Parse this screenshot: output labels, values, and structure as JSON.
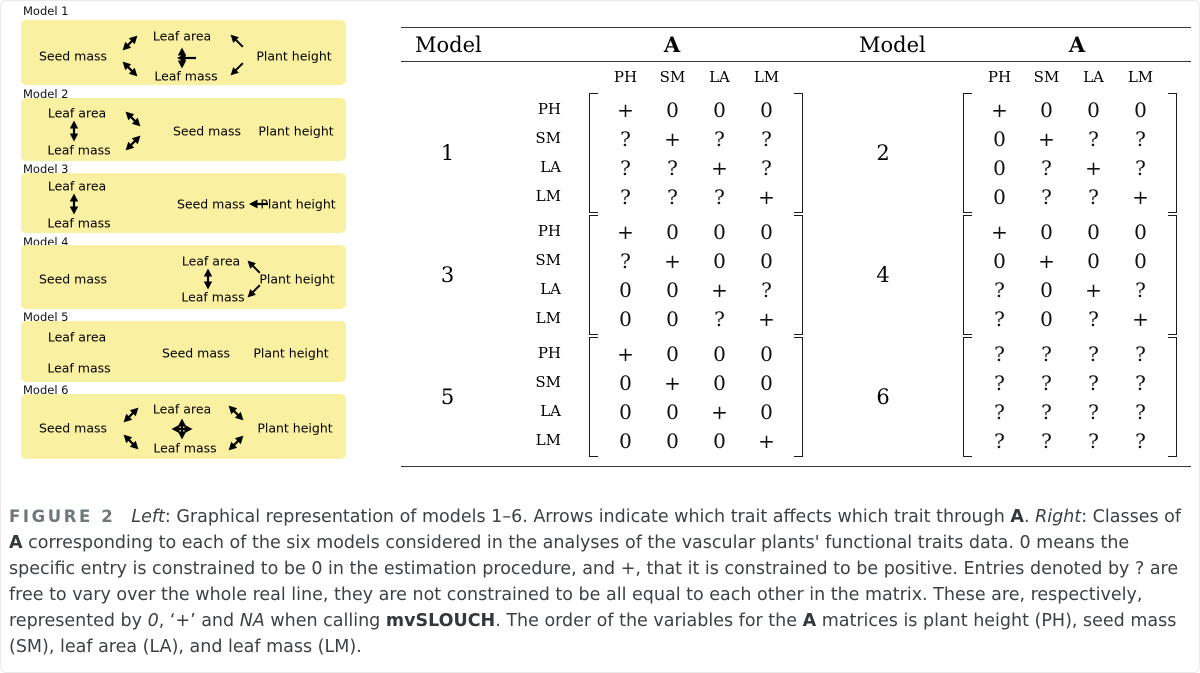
{
  "figure": {
    "traits": {
      "seed_mass": "Seed mass",
      "leaf_area": "Leaf area",
      "leaf_mass": "Leaf mass",
      "plant_height": "Plant height"
    },
    "models": [
      {
        "title": "Model 1"
      },
      {
        "title": "Model 2"
      },
      {
        "title": "Model 3"
      },
      {
        "title": "Model 4"
      },
      {
        "title": "Model 5"
      },
      {
        "title": "Model 6"
      }
    ],
    "box_color": "#faf0a2"
  },
  "table": {
    "header": {
      "model": "Model",
      "a": "A"
    },
    "col_labels": [
      "PH",
      "SM",
      "LA",
      "LM"
    ],
    "row_labels": [
      "PH",
      "SM",
      "LA",
      "LM"
    ],
    "models": [
      {
        "number": "1",
        "matrix": [
          [
            "+",
            "0",
            "0",
            "0"
          ],
          [
            "?",
            "+",
            "?",
            "?"
          ],
          [
            "?",
            "?",
            "+",
            "?"
          ],
          [
            "?",
            "?",
            "?",
            "+"
          ]
        ]
      },
      {
        "number": "2",
        "matrix": [
          [
            "+",
            "0",
            "0",
            "0"
          ],
          [
            "0",
            "+",
            "?",
            "?"
          ],
          [
            "0",
            "?",
            "+",
            "?"
          ],
          [
            "0",
            "?",
            "?",
            "+"
          ]
        ]
      },
      {
        "number": "3",
        "matrix": [
          [
            "+",
            "0",
            "0",
            "0"
          ],
          [
            "?",
            "+",
            "0",
            "0"
          ],
          [
            "0",
            "0",
            "+",
            "?"
          ],
          [
            "0",
            "0",
            "?",
            "+"
          ]
        ]
      },
      {
        "number": "4",
        "matrix": [
          [
            "+",
            "0",
            "0",
            "0"
          ],
          [
            "0",
            "+",
            "0",
            "0"
          ],
          [
            "?",
            "0",
            "+",
            "?"
          ],
          [
            "?",
            "0",
            "?",
            "+"
          ]
        ]
      },
      {
        "number": "5",
        "matrix": [
          [
            "+",
            "0",
            "0",
            "0"
          ],
          [
            "0",
            "+",
            "0",
            "0"
          ],
          [
            "0",
            "0",
            "+",
            "0"
          ],
          [
            "0",
            "0",
            "0",
            "+"
          ]
        ]
      },
      {
        "number": "6",
        "matrix": [
          [
            "?",
            "?",
            "?",
            "?"
          ],
          [
            "?",
            "?",
            "?",
            "?"
          ],
          [
            "?",
            "?",
            "?",
            "?"
          ],
          [
            "?",
            "?",
            "?",
            "?"
          ]
        ]
      }
    ]
  },
  "caption": {
    "label": "FIGURE 2",
    "runs": [
      {
        "text": "Left"
      },
      {
        "text": ": Graphical representation of models 1–6. Arrows indicate which trait affects which trait through "
      },
      {
        "text": "A"
      },
      {
        "text": ". "
      },
      {
        "text": "Right"
      },
      {
        "text": ": Classes of "
      },
      {
        "text": "A"
      },
      {
        "text": " corresponding to each of the six models considered in the analyses of the vascular plants' functional traits data. 0 means the specific entry is constrained to be 0 in the estimation procedure, and +, that it is constrained to be positive. Entries denoted by ? are free to vary over the whole real line, they are not constrained to be all equal to each other in the matrix. These are, respectively, represented by "
      },
      {
        "text": "0"
      },
      {
        "text": ", ‘+’ and "
      },
      {
        "text": "NA"
      },
      {
        "text": " when calling "
      },
      {
        "text": "mvSLOUCH"
      },
      {
        "text": ". The order of the variables for the "
      },
      {
        "text": "A"
      },
      {
        "text": " matrices is plant height (PH), seed mass (SM), leaf area (LA), and leaf mass (LM)."
      }
    ]
  }
}
